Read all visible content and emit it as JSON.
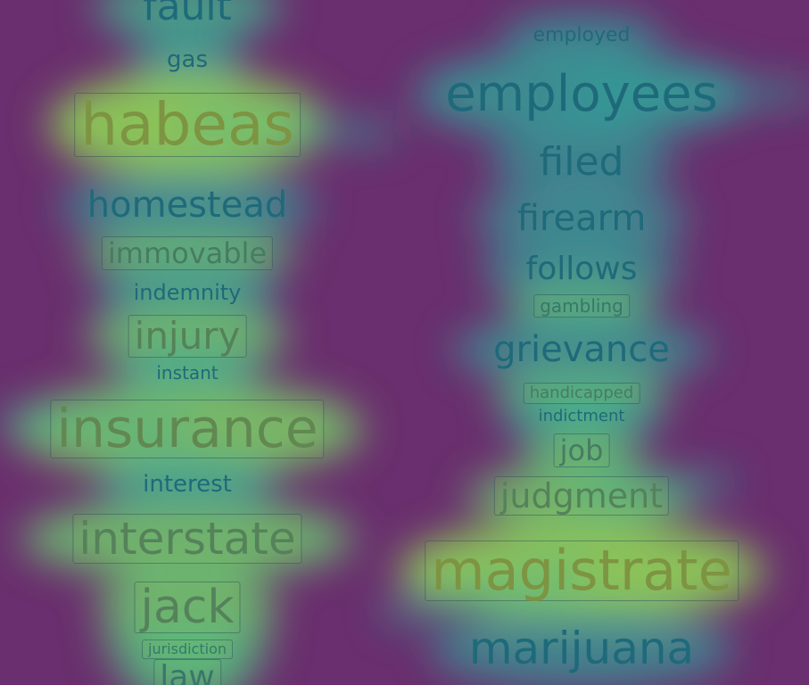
{
  "colors": {
    "background": "#6a2f6e",
    "heat_low": "#2ab3a0",
    "heat_high": "#b4d93c",
    "text_cool": "#1f6a7a",
    "text_warm": "#8a9a3a"
  },
  "columns": [
    {
      "words": [
        {
          "text": "fault",
          "heat": 0.6
        },
        {
          "text": "gas",
          "heat": 0.5
        },
        {
          "text": "habeas",
          "heat": 0.95,
          "boxed": true
        },
        {
          "text": "homestead",
          "heat": 0.45
        },
        {
          "text": "immovable",
          "heat": 0.75,
          "boxed": true
        },
        {
          "text": "indemnity",
          "heat": 0.5
        },
        {
          "text": "injury",
          "heat": 0.8,
          "boxed": true
        },
        {
          "text": "instant",
          "heat": 0.5
        },
        {
          "text": "insurance",
          "heat": 0.85,
          "boxed": true
        },
        {
          "text": "interest",
          "heat": 0.5
        },
        {
          "text": "interstate",
          "heat": 0.8,
          "boxed": true
        },
        {
          "text": "jack",
          "heat": 0.8,
          "boxed": true
        },
        {
          "text": "jurisdiction",
          "heat": 0.7,
          "boxed": true
        },
        {
          "text": "law",
          "heat": 0.7,
          "boxed": true
        }
      ]
    },
    {
      "words": [
        {
          "text": "employed",
          "heat": 0.3
        },
        {
          "text": "employees",
          "heat": 0.5
        },
        {
          "text": "filed",
          "heat": 0.3
        },
        {
          "text": "firearm",
          "heat": 0.35
        },
        {
          "text": "follows",
          "heat": 0.4
        },
        {
          "text": "gambling",
          "heat": 0.7,
          "boxed": true
        },
        {
          "text": "grievance",
          "heat": 0.4
        },
        {
          "text": "handicapped",
          "heat": 0.75,
          "boxed": true
        },
        {
          "text": "indictment",
          "heat": 0.4
        },
        {
          "text": "job",
          "heat": 0.75,
          "boxed": true
        },
        {
          "text": "judgment",
          "heat": 0.8,
          "boxed": true
        },
        {
          "text": "magistrate",
          "heat": 0.95,
          "boxed": true
        },
        {
          "text": "marijuana",
          "heat": 0.35
        }
      ]
    }
  ]
}
